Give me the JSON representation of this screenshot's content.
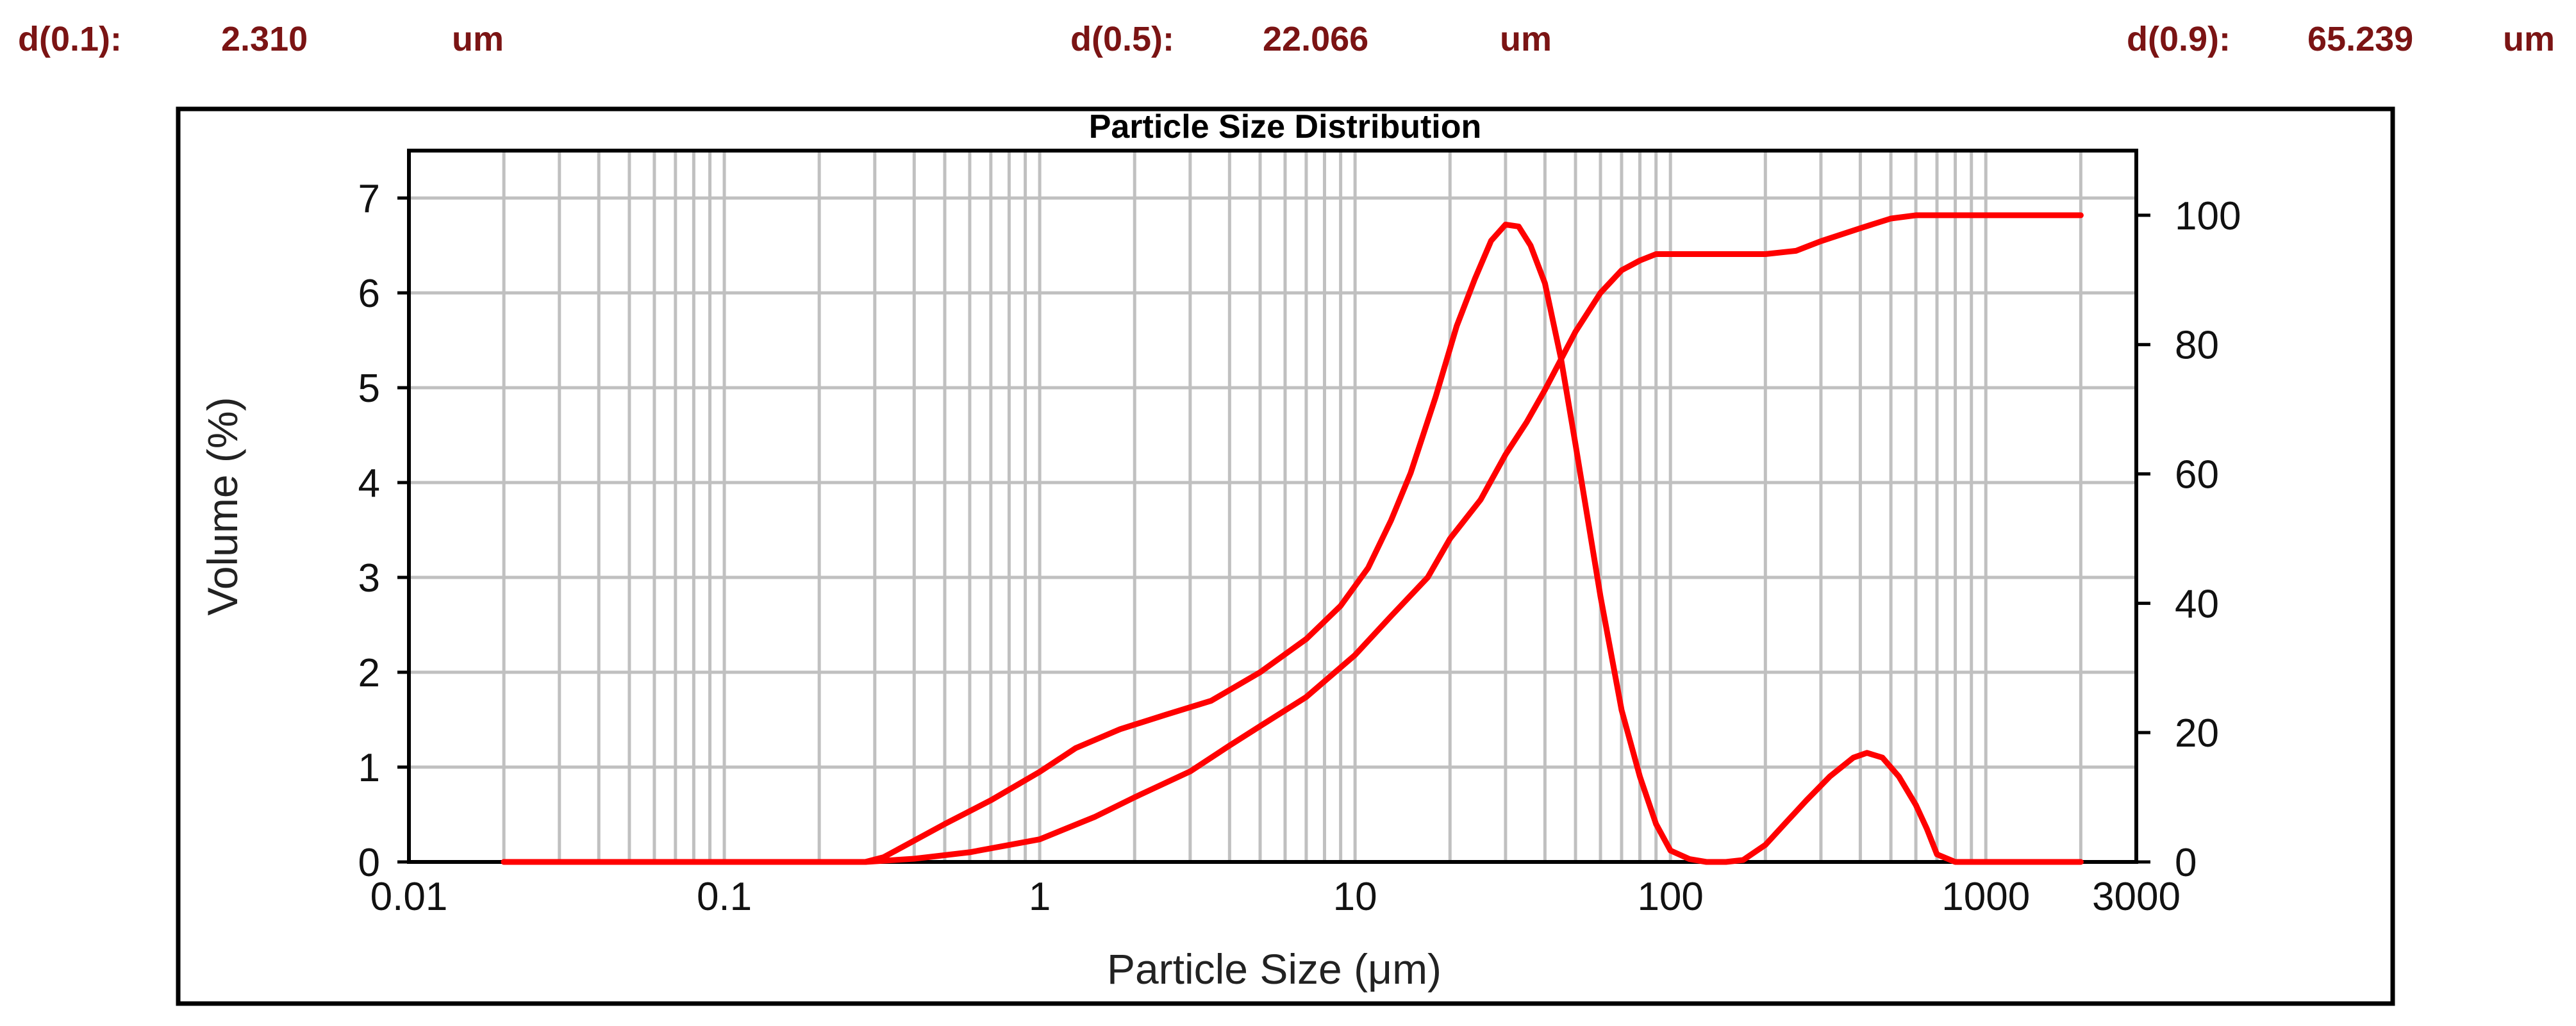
{
  "stats": [
    {
      "label": "d(0.1):",
      "value": "2.310",
      "unit": "um"
    },
    {
      "label": "d(0.5):",
      "value": "22.066",
      "unit": "um"
    },
    {
      "label": "d(0.9):",
      "value": "65.239",
      "unit": "um"
    }
  ],
  "colors": {
    "curve": "#ff0000",
    "stat_text": "#7b1414",
    "grid": "#c0c0c0",
    "frame": "#000000"
  },
  "chart_data": {
    "type": "line",
    "title": "Particle Size Distribution",
    "xlabel": "Particle Size (μm)",
    "ylabel": "Volume (%)",
    "x_scale": "log",
    "xlim": [
      0.01,
      3000
    ],
    "ylim": [
      0,
      7.5
    ],
    "y2lim": [
      0,
      110
    ],
    "grid": true,
    "x_tick_labels": [
      {
        "value": 0.01,
        "label": "0.01"
      },
      {
        "value": 0.1,
        "label": "0.1"
      },
      {
        "value": 1,
        "label": "1"
      },
      {
        "value": 10,
        "label": "10"
      },
      {
        "value": 100,
        "label": "100"
      },
      {
        "value": 1000,
        "label": "1000"
      },
      {
        "value": 3000,
        "label": "3000"
      }
    ],
    "y_ticks": [
      0,
      1,
      2,
      3,
      4,
      5,
      6,
      7
    ],
    "y2_ticks": [
      0,
      20,
      40,
      60,
      80,
      100
    ],
    "series": [
      {
        "axis": "left",
        "x": [
          0.02,
          0.1,
          0.28,
          0.32,
          0.5,
          0.7,
          1.0,
          1.3,
          1.8,
          2.5,
          3.5,
          5.0,
          7.0,
          9.0,
          11,
          13,
          15,
          18,
          21,
          24,
          27,
          30,
          33,
          36,
          40,
          45,
          50,
          60,
          70,
          80,
          90,
          100,
          115,
          130,
          150,
          170,
          200,
          230,
          270,
          320,
          380,
          420,
          470,
          530,
          600,
          650,
          700,
          800,
          1000,
          2000
        ],
        "y": [
          0,
          0,
          0,
          0.05,
          0.4,
          0.65,
          0.95,
          1.2,
          1.4,
          1.55,
          1.7,
          2.0,
          2.35,
          2.7,
          3.1,
          3.6,
          4.1,
          4.9,
          5.65,
          6.15,
          6.55,
          6.72,
          6.7,
          6.5,
          6.1,
          5.3,
          4.4,
          2.8,
          1.6,
          0.9,
          0.4,
          0.12,
          0.03,
          0.0,
          0.0,
          0.02,
          0.18,
          0.4,
          0.65,
          0.9,
          1.1,
          1.15,
          1.1,
          0.9,
          0.6,
          0.35,
          0.08,
          0.0,
          0.0,
          0.0
        ]
      },
      {
        "axis": "right",
        "x": [
          0.02,
          0.1,
          0.28,
          0.4,
          0.6,
          1.0,
          1.5,
          2.0,
          3.0,
          4.0,
          5.0,
          7.0,
          10,
          13,
          17,
          20,
          25,
          30,
          35,
          40,
          50,
          60,
          70,
          80,
          90,
          100,
          150,
          200,
          250,
          300,
          400,
          500,
          600,
          700,
          1000,
          2000
        ],
        "y": [
          0,
          0,
          0,
          0.5,
          1.5,
          3.5,
          7,
          10,
          14,
          18,
          21,
          25.5,
          32,
          38,
          44,
          50,
          56,
          63,
          68,
          73,
          82,
          88,
          91.5,
          93,
          94,
          94,
          94,
          94,
          94.5,
          96,
          98,
          99.5,
          100,
          100,
          100,
          100
        ]
      }
    ]
  }
}
